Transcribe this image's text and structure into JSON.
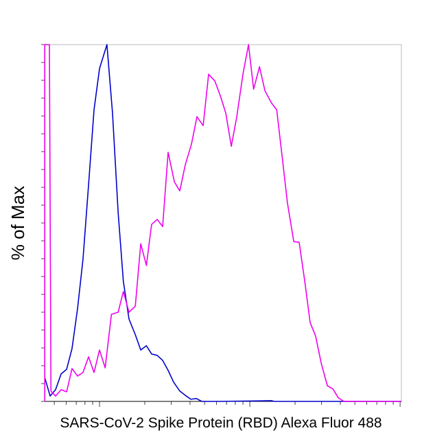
{
  "chart_data": {
    "type": "line",
    "x_label": "SARS-CoV-2 Spike Protein (RBD) Alexa Fluor 488",
    "y_label": "% of Max",
    "xscale": "log",
    "xlim": [
      431,
      102000
    ],
    "ylim": [
      0,
      100
    ],
    "tick_labels": false,
    "xticks": [
      500,
      600,
      700,
      800,
      900,
      1000,
      2000,
      3000,
      4000,
      5000,
      6000,
      7000,
      8000,
      9000,
      10000,
      20000,
      30000,
      40000,
      50000,
      60000,
      70000,
      80000,
      90000,
      100000
    ],
    "yticks": [
      0,
      5,
      10,
      15,
      20,
      25,
      30,
      35,
      40,
      45,
      50,
      55,
      60,
      65,
      70,
      75,
      80,
      85,
      90,
      95,
      100
    ],
    "series": [
      {
        "color": "#0000cc",
        "x": [
          432,
          469,
          510,
          555,
          604,
          656,
          714,
          776,
          845,
          919,
          1000,
          1120,
          1220,
          1330,
          1440,
          1570,
          1730,
          1880,
          2050,
          2220,
          2420,
          2630,
          2860,
          3110,
          3420,
          3720,
          4050,
          4410,
          4790,
          6300,
          13900,
          14600,
          102000
        ],
        "values": [
          6.7,
          1.5,
          3.3,
          7.7,
          9.0,
          14.8,
          26,
          39.8,
          60.6,
          81.7,
          93.3,
          100,
          80.8,
          52.9,
          33.7,
          23.1,
          18.7,
          14.4,
          15.6,
          13.3,
          12.9,
          11.5,
          8.7,
          5.4,
          2.9,
          1.7,
          0.6,
          0.8,
          0,
          0,
          0.2,
          0,
          0
        ]
      },
      {
        "color": "#ee00ee",
        "x": [
          432,
          432,
          464,
          475,
          510,
          555,
          604,
          656,
          714,
          776,
          845,
          919,
          1000,
          1090,
          1200,
          1330,
          1440,
          1570,
          1730,
          1880,
          2050,
          2220,
          2420,
          2630,
          2860,
          3150,
          3420,
          3720,
          4090,
          4450,
          4890,
          5320,
          5850,
          6370,
          6920,
          7530,
          8190,
          9000,
          9800,
          10600,
          11600,
          12600,
          13900,
          15100,
          16400,
          17800,
          19600,
          21300,
          23200,
          25200,
          27400,
          29900,
          32800,
          35700,
          38800,
          42300,
          102000
        ],
        "values": [
          0,
          100,
          100,
          2.9,
          1.5,
          3.3,
          2.7,
          9.2,
          7.1,
          8.1,
          12.5,
          8.1,
          14.4,
          9.4,
          24.4,
          25,
          30.8,
          25,
          26.7,
          44.2,
          38.1,
          49.6,
          51,
          49,
          69.8,
          61.5,
          59,
          66.3,
          72.1,
          79.8,
          77.3,
          91.7,
          89.8,
          85.6,
          80.8,
          71.5,
          79.8,
          91.7,
          100,
          87.5,
          93.8,
          87.1,
          83.7,
          81.7,
          68.7,
          55.6,
          44.8,
          44.6,
          33.7,
          22.1,
          18.3,
          10.6,
          4.4,
          3.5,
          1.0,
          0,
          0
        ]
      }
    ]
  }
}
